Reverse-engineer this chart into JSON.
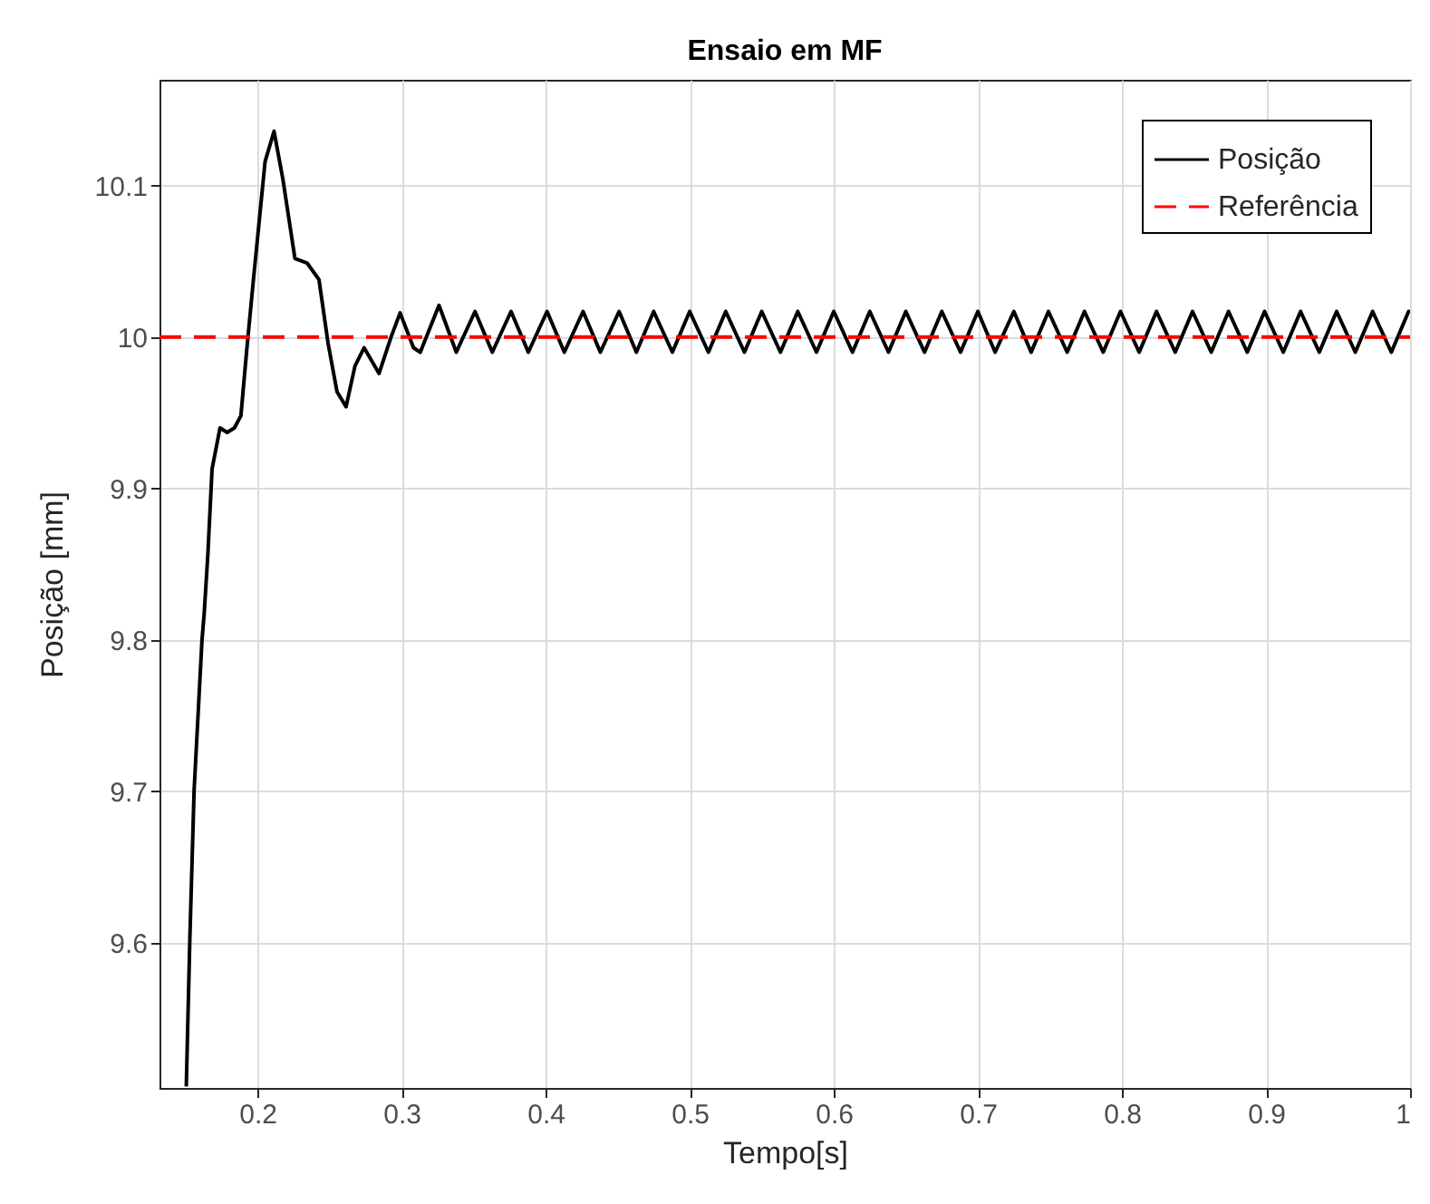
{
  "chart_data": {
    "type": "line",
    "title": "Ensaio em MF",
    "xlabel": "Tempo[s]",
    "ylabel": "Posição [mm]",
    "xlim": [
      0.132,
      1.0
    ],
    "ylim": [
      9.504,
      10.17
    ],
    "xticks": [
      0.2,
      0.3,
      0.4,
      0.5,
      0.6,
      0.7,
      0.8,
      0.9,
      1
    ],
    "yticks": [
      9.6,
      9.7,
      9.8,
      9.9,
      10,
      10.1
    ],
    "grid": true,
    "legend": "top right",
    "series": [
      {
        "name": "Posição",
        "color": "#000000",
        "line_style": "solid",
        "x": [
          0.1506,
          0.153,
          0.156,
          0.1615,
          0.163,
          0.1656,
          0.1685,
          0.174,
          0.179,
          0.184,
          0.1885,
          0.1927,
          0.197,
          0.2053,
          0.2115,
          0.2177,
          0.226,
          0.2344,
          0.2427,
          0.249,
          0.2552,
          0.2615,
          0.2677,
          0.274,
          0.2844,
          0.2927,
          0.299,
          0.3083,
          0.313,
          0.326,
          0.338,
          0.351,
          0.363,
          0.376,
          0.388,
          0.401,
          0.413,
          0.426,
          0.438,
          0.451,
          0.463,
          0.475,
          0.488,
          0.5,
          0.513,
          0.525,
          0.538,
          0.55,
          0.563,
          0.575,
          0.588,
          0.6,
          0.613,
          0.625,
          0.638,
          0.65,
          0.663,
          0.675,
          0.688,
          0.7,
          0.712,
          0.725,
          0.737,
          0.749,
          0.762,
          0.774,
          0.787,
          0.799,
          0.812,
          0.824,
          0.837,
          0.849,
          0.862,
          0.874,
          0.887,
          0.899,
          0.912,
          0.924,
          0.937,
          0.949,
          0.962,
          0.974,
          0.987,
          0.999,
          1.0
        ],
        "values": [
          9.505,
          9.6,
          9.7,
          9.8,
          9.817,
          9.857,
          9.913,
          9.94,
          9.937,
          9.94,
          9.948,
          9.993,
          10.036,
          10.116,
          10.136,
          10.104,
          10.052,
          10.049,
          10.038,
          9.996,
          9.964,
          9.954,
          9.981,
          9.993,
          9.976,
          10.0,
          10.016,
          9.993,
          9.99,
          10.021,
          9.99,
          10.017,
          9.99,
          10.017,
          9.99,
          10.017,
          9.99,
          10.017,
          9.99,
          10.017,
          9.99,
          10.017,
          9.99,
          10.017,
          9.99,
          10.017,
          9.99,
          10.017,
          9.99,
          10.017,
          9.99,
          10.017,
          9.99,
          10.017,
          9.99,
          10.017,
          9.99,
          10.017,
          9.99,
          10.017,
          9.99,
          10.017,
          9.99,
          10.017,
          9.99,
          10.017,
          9.99,
          10.017,
          9.99,
          10.017,
          9.99,
          10.017,
          9.99,
          10.017,
          9.99,
          10.017,
          9.99,
          10.017,
          9.99,
          10.017,
          9.99,
          10.017,
          9.99,
          10.017,
          10.016
        ]
      },
      {
        "name": "Referência",
        "color": "#ff0000",
        "line_style": "dashed",
        "x": [
          0.132,
          1.0
        ],
        "values": [
          10,
          10
        ]
      }
    ]
  }
}
